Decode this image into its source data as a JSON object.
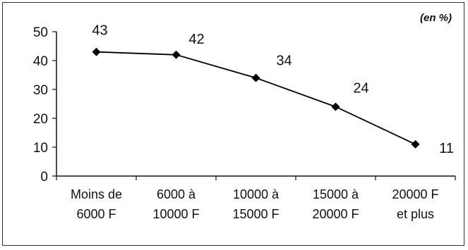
{
  "chart_data": {
    "type": "line",
    "unit_note": "(en %)",
    "categories": [
      [
        "Moins de",
        "6000 F"
      ],
      [
        "6000 à",
        "10000 F"
      ],
      [
        "10000 à",
        "15000 F"
      ],
      [
        "15000 à",
        "20000 F"
      ],
      [
        "20000 F",
        "et plus"
      ]
    ],
    "series": [
      {
        "values": [
          43,
          42,
          34,
          24,
          11
        ]
      }
    ],
    "ylim": [
      0,
      50
    ],
    "yticks": [
      0,
      10,
      20,
      30,
      40,
      50
    ],
    "grid": false,
    "marker": "diamond",
    "line_color": "#000000",
    "data_labels": [
      "43",
      "42",
      "34",
      "24",
      "11"
    ]
  }
}
